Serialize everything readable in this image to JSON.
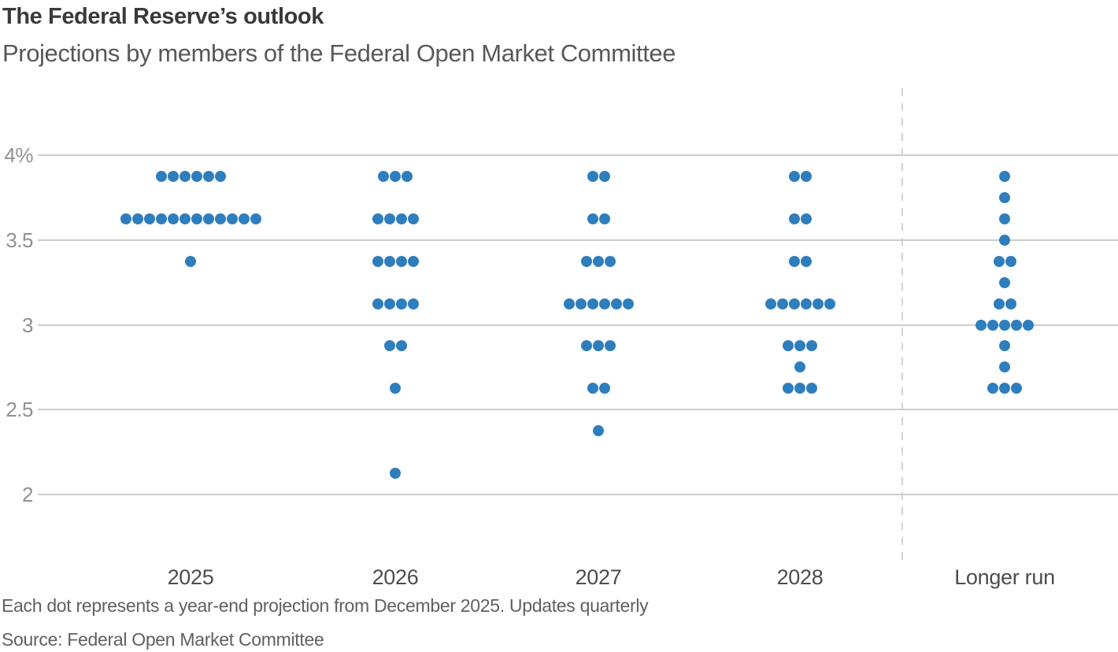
{
  "chart": {
    "title": "The Federal Reserve’s outlook",
    "subtitle": "Projections by members of the Federal Open Market Committee",
    "footnote": "Each dot represents a year-end projection from December 2025. Updates quarterly",
    "source": "Source: Federal Open Market Committee"
  },
  "chart_data": {
    "type": "scatter",
    "variant": "fomc-dot-plot",
    "title": "The Federal Reserve’s outlook",
    "subtitle": "Projections by members of the Federal Open Market Committee",
    "unit": "percent",
    "dot_color": "#2e7ebd",
    "gridline_color": "#cccccc",
    "separator_color": "#d3d3d3",
    "grid": "horizontal-only",
    "y_axis": {
      "ticks": [
        {
          "value": 4.0,
          "label": "4%"
        },
        {
          "value": 3.5,
          "label": "3.5"
        },
        {
          "value": 3.0,
          "label": "3"
        },
        {
          "value": 2.5,
          "label": "2.5"
        },
        {
          "value": 2.0,
          "label": "2"
        }
      ]
    },
    "categories": [
      "2025",
      "2026",
      "2027",
      "2028",
      "Longer run"
    ],
    "separator_before_category": "Longer run",
    "series": [
      {
        "category": "2025",
        "projections": [
          {
            "rate": 3.875,
            "count": 6
          },
          {
            "rate": 3.625,
            "count": 12
          },
          {
            "rate": 3.375,
            "count": 1
          }
        ]
      },
      {
        "category": "2026",
        "projections": [
          {
            "rate": 3.875,
            "count": 3
          },
          {
            "rate": 3.625,
            "count": 4
          },
          {
            "rate": 3.375,
            "count": 4
          },
          {
            "rate": 3.125,
            "count": 4
          },
          {
            "rate": 2.875,
            "count": 2
          },
          {
            "rate": 2.625,
            "count": 1
          },
          {
            "rate": 2.125,
            "count": 1
          }
        ]
      },
      {
        "category": "2027",
        "projections": [
          {
            "rate": 3.875,
            "count": 2
          },
          {
            "rate": 3.625,
            "count": 2
          },
          {
            "rate": 3.375,
            "count": 3
          },
          {
            "rate": 3.125,
            "count": 6
          },
          {
            "rate": 2.875,
            "count": 3
          },
          {
            "rate": 2.625,
            "count": 2
          },
          {
            "rate": 2.375,
            "count": 1
          }
        ]
      },
      {
        "category": "2028",
        "projections": [
          {
            "rate": 3.875,
            "count": 2
          },
          {
            "rate": 3.625,
            "count": 2
          },
          {
            "rate": 3.375,
            "count": 2
          },
          {
            "rate": 3.125,
            "count": 6
          },
          {
            "rate": 2.875,
            "count": 3
          },
          {
            "rate": 2.75,
            "count": 1
          },
          {
            "rate": 2.625,
            "count": 3
          }
        ]
      },
      {
        "category": "Longer run",
        "projections": [
          {
            "rate": 3.875,
            "count": 1
          },
          {
            "rate": 3.75,
            "count": 1
          },
          {
            "rate": 3.625,
            "count": 1
          },
          {
            "rate": 3.5,
            "count": 1
          },
          {
            "rate": 3.375,
            "count": 2
          },
          {
            "rate": 3.25,
            "count": 1
          },
          {
            "rate": 3.125,
            "count": 2
          },
          {
            "rate": 3.0,
            "count": 5
          },
          {
            "rate": 2.875,
            "count": 1
          },
          {
            "rate": 2.75,
            "count": 1
          },
          {
            "rate": 2.625,
            "count": 3
          }
        ]
      }
    ]
  }
}
